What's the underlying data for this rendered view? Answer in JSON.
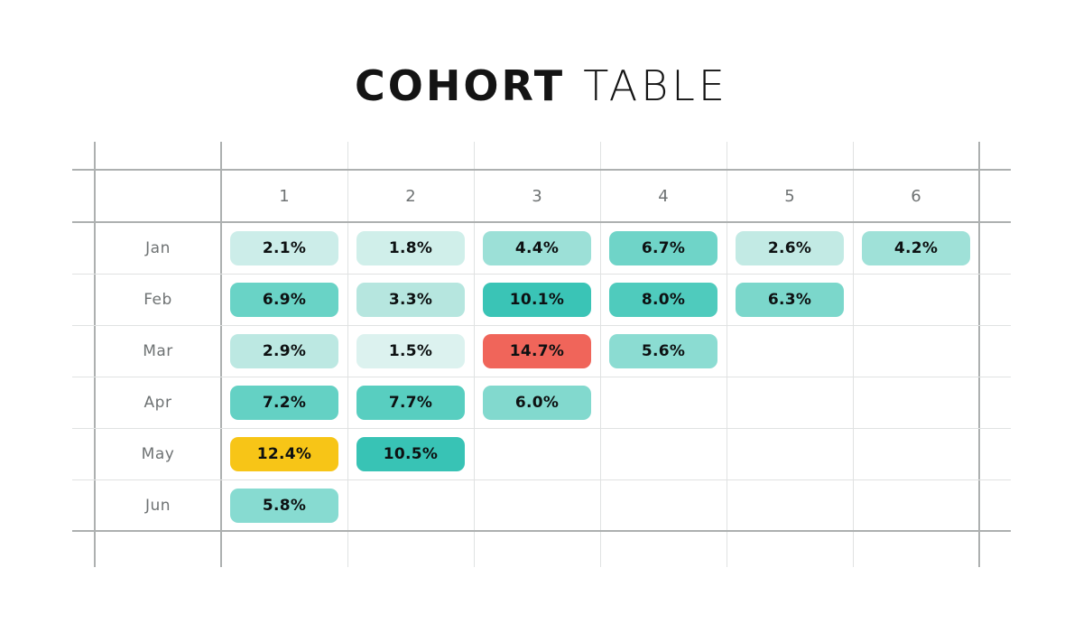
{
  "title": {
    "word1": "COHORT",
    "word2": "TABLE"
  },
  "colors": {
    "background": "#ffffff",
    "grid_dark": "#adb0b0",
    "grid_light": "#e0e2e2",
    "header_text": "#6e7273",
    "cell_text": "#0d1112",
    "highlight_red": "#f0655a",
    "highlight_yellow": "#f7c517",
    "teal_dark": "#38c3b5",
    "teal_light": "#dcf2ef"
  },
  "chart_data": {
    "type": "heatmap",
    "title": "COHORT TABLE",
    "columns": [
      "1",
      "2",
      "3",
      "4",
      "5",
      "6"
    ],
    "rows": [
      "Jan",
      "Feb",
      "Mar",
      "Apr",
      "May",
      "Jun"
    ],
    "values": [
      [
        2.1,
        1.8,
        4.4,
        6.7,
        2.6,
        4.2
      ],
      [
        6.9,
        3.3,
        10.1,
        8.0,
        6.3,
        null
      ],
      [
        2.9,
        1.5,
        14.7,
        5.6,
        null,
        null
      ],
      [
        7.2,
        7.7,
        6.0,
        null,
        null,
        null
      ],
      [
        12.4,
        10.5,
        null,
        null,
        null,
        null
      ],
      [
        5.8,
        null,
        null,
        null,
        null,
        null
      ]
    ],
    "labels": [
      [
        "2.1%",
        "1.8%",
        "4.4%",
        "6.7%",
        "2.6%",
        "4.2%"
      ],
      [
        "6.9%",
        "3.3%",
        "10.1%",
        "8.0%",
        "6.3%",
        null
      ],
      [
        "2.9%",
        "1.5%",
        "14.7%",
        "5.6%",
        null,
        null
      ],
      [
        "7.2%",
        "7.7%",
        "6.0%",
        null,
        null,
        null
      ],
      [
        "12.4%",
        "10.5%",
        null,
        null,
        null,
        null
      ],
      [
        "5.8%",
        null,
        null,
        null,
        null,
        null
      ]
    ],
    "cell_colors": [
      [
        "#ccede9",
        "#d0efea",
        "#9ce0d7",
        "#6fd4c8",
        "#c2eae4",
        "#9fe1d8"
      ],
      [
        "#69d3c6",
        "#b6e6df",
        "#3ac4b6",
        "#4fcbbd",
        "#7bd7cb",
        null
      ],
      [
        "#bce8e2",
        "#dcf2ef",
        "#f0655a",
        "#8bdcd2",
        null,
        null
      ],
      [
        "#64d1c4",
        "#58cec0",
        "#82d9ce",
        null,
        null,
        null
      ],
      [
        "#f7c517",
        "#38c3b5",
        null,
        null,
        null,
        null
      ],
      [
        "#87dbd1",
        null,
        null,
        null,
        null,
        null
      ]
    ],
    "legend_position": "none",
    "grid": true
  }
}
